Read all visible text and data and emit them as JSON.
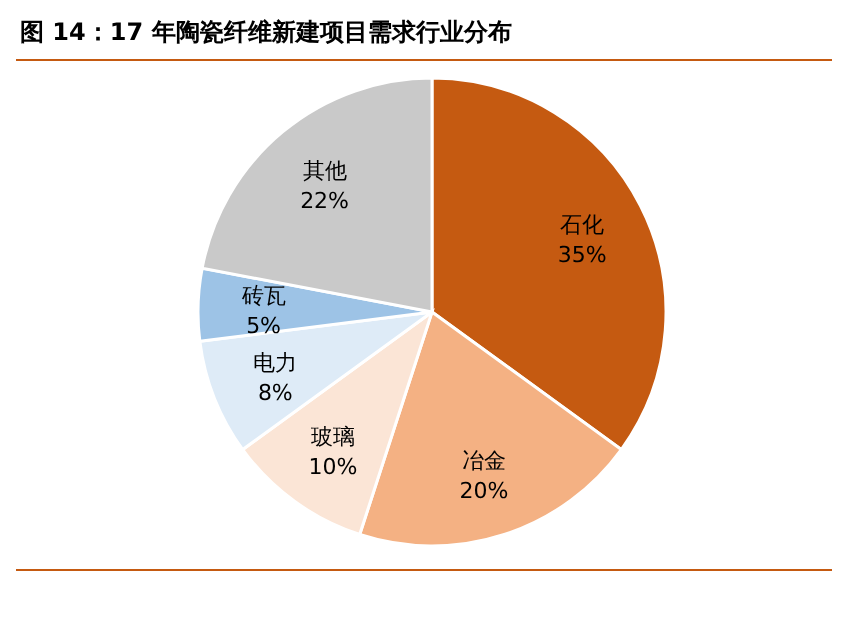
{
  "chart_data": {
    "type": "pie",
    "title": "图 14：17 年陶瓷纤维新建项目需求行业分布",
    "categories": [
      "石化",
      "冶金",
      "玻璃",
      "电力",
      "砖瓦",
      "其他"
    ],
    "values": [
      35,
      20,
      10,
      8,
      5,
      22
    ],
    "value_labels": [
      "35%",
      "20%",
      "10%",
      "8%",
      "5%",
      "22%"
    ],
    "colors": [
      "#c55a11",
      "#f4b183",
      "#fbe5d6",
      "#deebf7",
      "#9dc3e6",
      "#c9c9c9"
    ]
  }
}
